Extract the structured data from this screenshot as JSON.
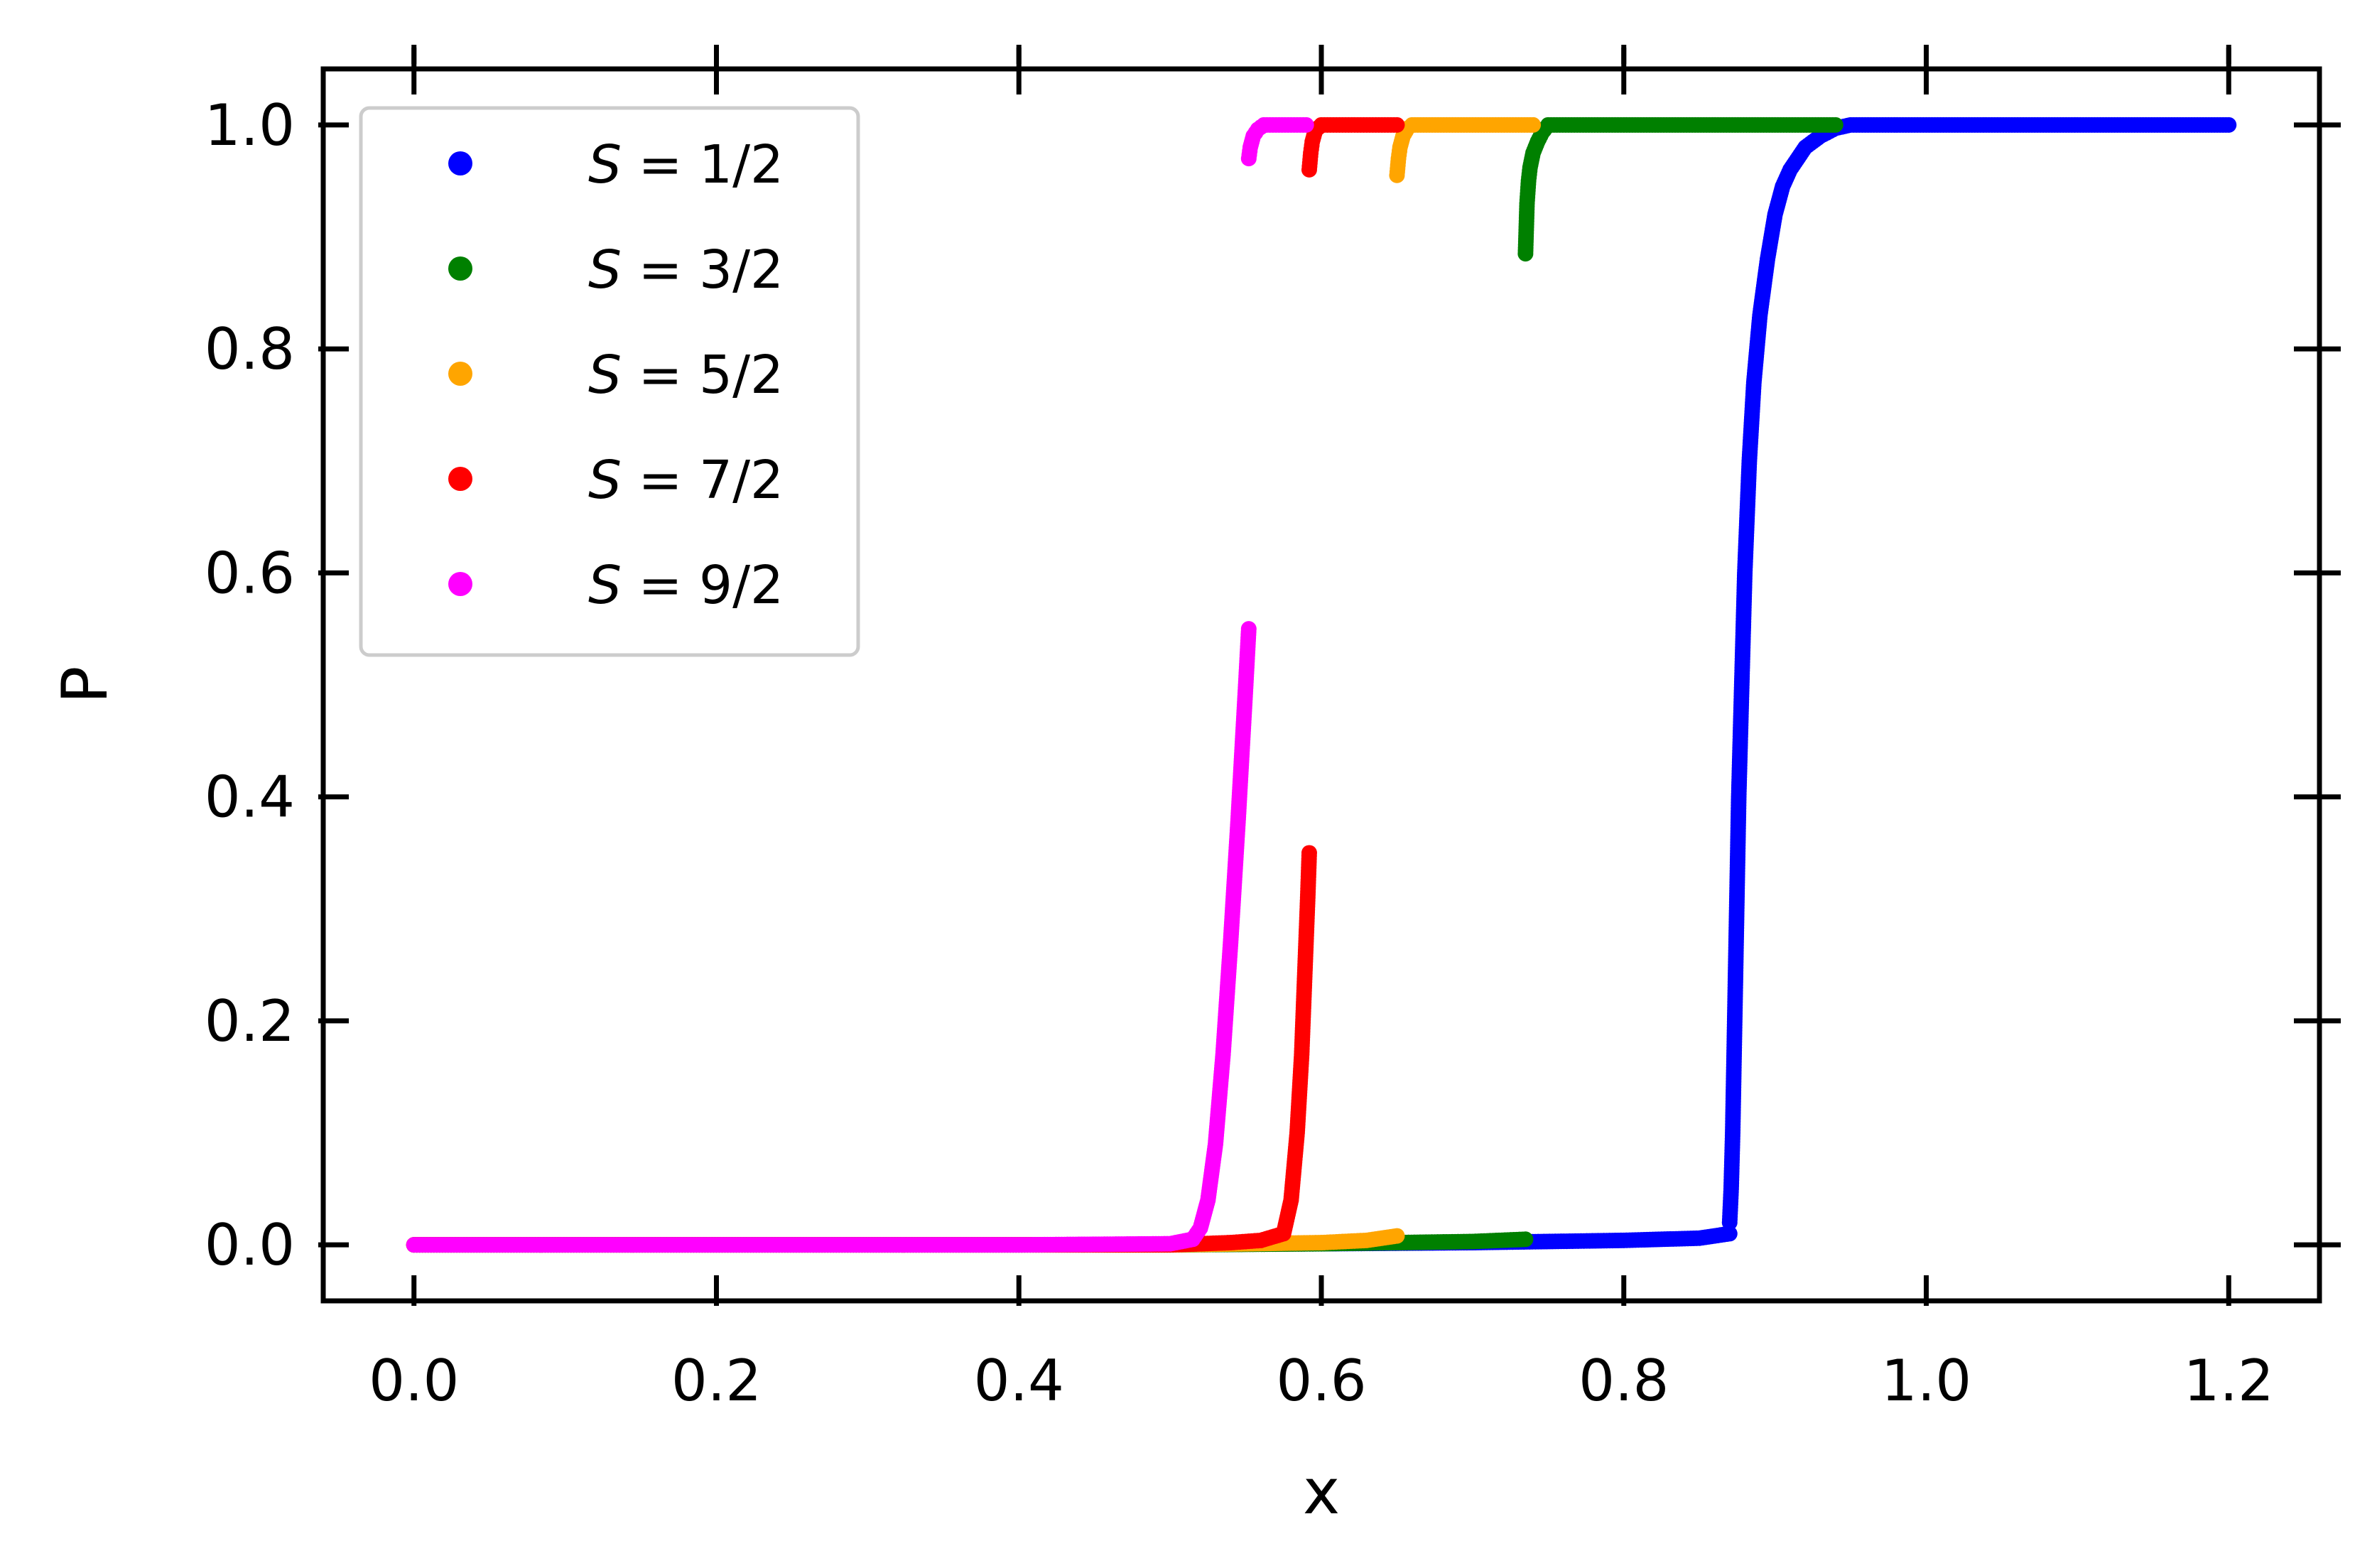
{
  "chart_data": {
    "type": "scatter",
    "xlabel": "x",
    "ylabel": "P",
    "xlim": [
      -0.06,
      1.26
    ],
    "ylim": [
      -0.05,
      1.05
    ],
    "xticks": [
      "0.0",
      "0.2",
      "0.4",
      "0.6",
      "0.8",
      "1.0",
      "1.2"
    ],
    "yticks": [
      "0.0",
      "0.2",
      "0.4",
      "0.6",
      "0.8",
      "1.0"
    ],
    "grid": false,
    "legend_position": "top-left",
    "series": [
      {
        "name": "S = 1/2",
        "legend_symbol": "S",
        "legend_rest": " = 1/2",
        "color": "#0000ff",
        "branches": [
          {
            "x": [
              0.0,
              0.2,
              0.4,
              0.6,
              0.7,
              0.8,
              0.85,
              0.87
            ],
            "y": [
              0.0,
              0.0,
              0.0,
              0.001,
              0.002,
              0.004,
              0.006,
              0.01
            ]
          },
          {
            "x": [
              0.87,
              0.871,
              0.872,
              0.874,
              0.876,
              0.878,
              0.88,
              0.883,
              0.886,
              0.89,
              0.895,
              0.9,
              0.905,
              0.91,
              0.92,
              0.93,
              0.94,
              0.95,
              1.0,
              1.1,
              1.2
            ],
            "y": [
              0.02,
              0.05,
              0.1,
              0.25,
              0.4,
              0.5,
              0.6,
              0.7,
              0.77,
              0.83,
              0.88,
              0.92,
              0.945,
              0.96,
              0.98,
              0.99,
              0.997,
              1.0,
              1.0,
              1.0,
              1.0
            ]
          }
        ]
      },
      {
        "name": "S = 3/2",
        "legend_symbol": "S",
        "legend_rest": " = 3/2",
        "color": "#008000",
        "branches": [
          {
            "x": [
              0.0,
              0.3,
              0.5,
              0.6,
              0.65,
              0.7,
              0.735
            ],
            "y": [
              0.0,
              0.0,
              0.0,
              0.001,
              0.002,
              0.003,
              0.005
            ]
          },
          {
            "x": [
              0.735,
              0.736,
              0.737,
              0.738,
              0.74,
              0.743,
              0.746,
              0.75,
              0.8,
              0.9,
              0.94
            ],
            "y": [
              0.885,
              0.93,
              0.95,
              0.962,
              0.975,
              0.985,
              0.993,
              1.0,
              1.0,
              1.0,
              1.0
            ]
          }
        ]
      },
      {
        "name": "S = 5/2",
        "legend_symbol": "S",
        "legend_rest": " = 5/2",
        "color": "#ffa500",
        "branches": [
          {
            "x": [
              0.0,
              0.3,
              0.5,
              0.6,
              0.63,
              0.65
            ],
            "y": [
              0.0,
              0.0,
              0.0,
              0.002,
              0.004,
              0.008
            ]
          },
          {
            "x": [
              0.65,
              0.651,
              0.652,
              0.654,
              0.657,
              0.66,
              0.7,
              0.74
            ],
            "y": [
              0.955,
              0.97,
              0.98,
              0.99,
              0.997,
              1.0,
              1.0,
              1.0
            ]
          }
        ]
      },
      {
        "name": "S = 7/2",
        "legend_symbol": "S",
        "legend_rest": " = 7/2",
        "color": "#ff0000",
        "branches": [
          {
            "x": [
              0.0,
              0.3,
              0.5,
              0.54,
              0.56,
              0.575,
              0.58,
              0.584,
              0.587,
              0.589,
              0.591,
              0.592
            ],
            "y": [
              0.0,
              0.0,
              0.0,
              0.002,
              0.004,
              0.01,
              0.04,
              0.1,
              0.17,
              0.24,
              0.31,
              0.35
            ]
          },
          {
            "x": [
              0.592,
              0.593,
              0.594,
              0.596,
              0.6,
              0.62,
              0.65
            ],
            "y": [
              0.96,
              0.975,
              0.985,
              0.995,
              1.0,
              1.0,
              1.0
            ]
          }
        ]
      },
      {
        "name": "S = 9/2",
        "legend_symbol": "S",
        "legend_rest": " = 9/2",
        "color": "#ff00ff",
        "branches": [
          {
            "x": [
              0.0,
              0.2,
              0.4,
              0.5,
              0.515,
              0.52,
              0.525,
              0.53,
              0.535,
              0.54,
              0.545,
              0.55,
              0.552
            ],
            "y": [
              0.0,
              0.0,
              0.0,
              0.001,
              0.005,
              0.015,
              0.04,
              0.09,
              0.17,
              0.27,
              0.38,
              0.5,
              0.55
            ]
          },
          {
            "x": [
              0.552,
              0.553,
              0.555,
              0.558,
              0.562,
              0.57,
              0.59
            ],
            "y": [
              0.97,
              0.98,
              0.99,
              0.996,
              1.0,
              1.0,
              1.0
            ]
          }
        ]
      }
    ]
  }
}
